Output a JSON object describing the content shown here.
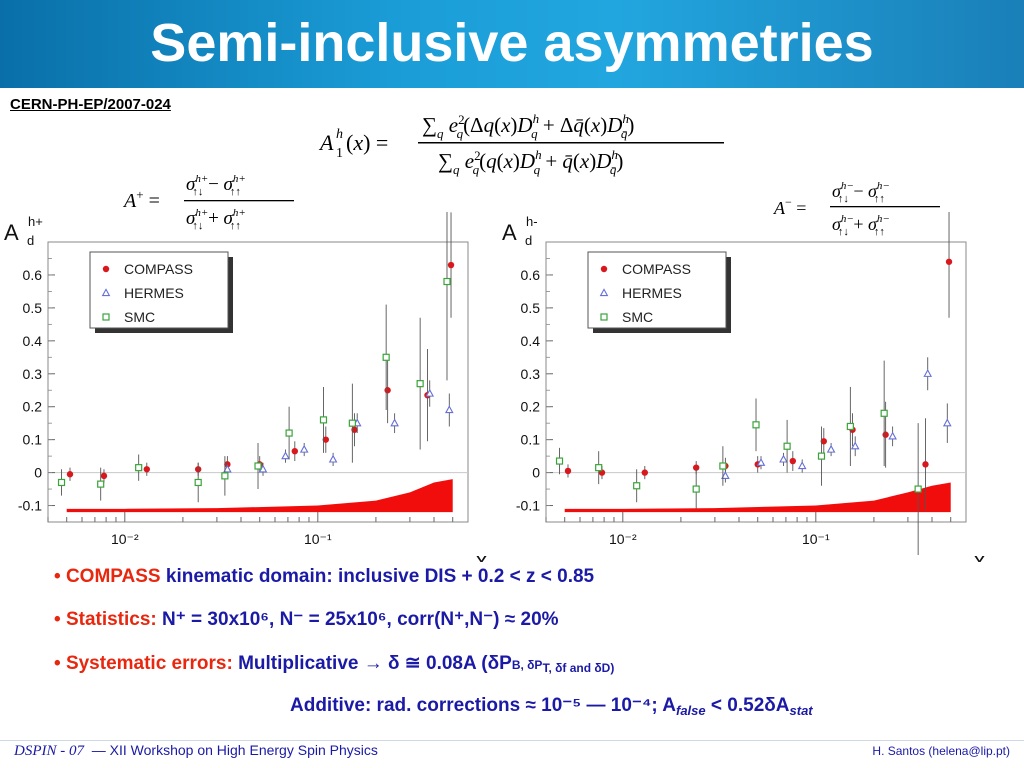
{
  "slide": {
    "title": "Semi-inclusive asymmetries",
    "reference": "CERN-PH-EP/2007-024"
  },
  "bullets": [
    {
      "parts": [
        {
          "text": "COMPASS",
          "style": "red"
        },
        {
          "text": " kinematic domain:  inclusive DIS     +     0.2 < z < 0.85",
          "style": "blue"
        }
      ]
    },
    {
      "parts": [
        {
          "text": "Statistics:",
          "style": "red"
        },
        {
          "text": "  N⁺ = 30x10⁶,      N⁻ = 25x10⁶,      corr(N⁺,N⁻) ≈ 20%",
          "style": "blue"
        }
      ]
    },
    {
      "parts": [
        {
          "text": "Systematic errors:",
          "style": "red"
        },
        {
          "text": " Multiplicative → δ ≅ 0.08A  (δP",
          "style": "blue"
        }
      ]
    },
    {
      "parts": [
        {
          "text": "Additive: rad. corrections ≈ 10⁻⁵ — 10⁻⁴;   A",
          "style": "blue"
        }
      ]
    }
  ],
  "bullet_text": {
    "b3_tail": "B, δP",
    "b3_tail2": "T, δf and δD)",
    "b4_sub1": "false",
    "b4_mid": " < 0.52δA",
    "b4_sub2": "stat"
  },
  "footer": {
    "left_italic": "DSPIN - 07",
    "left_text": "—  XII Workshop on High Energy Spin Physics",
    "right_text": "H. Santos  (helena@lip.pt)"
  },
  "colors": {
    "compass": "#d9181d",
    "hermes": "#6670d6",
    "smc": "#3aa43a",
    "band": "#f20d0d",
    "bullet_blue": "#1a1aa6",
    "bullet_red": "#e8270e"
  },
  "chart_data": [
    {
      "type": "scatter",
      "ylabel": "A",
      "ylabel_sup": "h+",
      "ylabel_sub": "d",
      "xlabel": "x",
      "xscale": "log",
      "xlim": [
        0.004,
        0.6
      ],
      "ylim": [
        -0.15,
        0.7
      ],
      "yticks": [
        -0.1,
        0,
        0.1,
        0.2,
        0.3,
        0.4,
        0.5,
        0.6
      ],
      "ytick_labels": [
        "-0.1",
        "0",
        "0.1",
        "0.2",
        "0.3",
        "0.4",
        "0.5",
        "0.6"
      ],
      "xticks": [
        0.01,
        0.1
      ],
      "xtick_labels": [
        "10⁻²",
        "10⁻¹"
      ],
      "legend": [
        "COMPASS",
        "HERMES",
        "SMC"
      ],
      "legend_position": "top-left",
      "series": [
        {
          "name": "COMPASS",
          "marker": "circle",
          "points": [
            [
              0.0052,
              -0.005,
              0.02
            ],
            [
              0.0078,
              -0.01,
              0.02
            ],
            [
              0.013,
              0.01,
              0.02
            ],
            [
              0.024,
              0.01,
              0.02
            ],
            [
              0.034,
              0.025,
              0.025
            ],
            [
              0.05,
              0.025,
              0.025
            ],
            [
              0.076,
              0.065,
              0.03
            ],
            [
              0.11,
              0.1,
              0.04
            ],
            [
              0.155,
              0.13,
              0.05
            ],
            [
              0.23,
              0.25,
              0.1
            ],
            [
              0.37,
              0.235,
              0.14
            ],
            [
              0.49,
              0.63,
              0.16
            ]
          ]
        },
        {
          "name": "HERMES",
          "marker": "triangle",
          "points": [
            [
              0.034,
              0.01,
              0.02
            ],
            [
              0.052,
              0.01,
              0.02
            ],
            [
              0.068,
              0.05,
              0.02
            ],
            [
              0.085,
              0.07,
              0.02
            ],
            [
              0.12,
              0.04,
              0.02
            ],
            [
              0.16,
              0.15,
              0.03
            ],
            [
              0.25,
              0.15,
              0.03
            ],
            [
              0.38,
              0.24,
              0.04
            ],
            [
              0.48,
              0.19,
              0.05
            ]
          ]
        },
        {
          "name": "SMC",
          "marker": "square",
          "points": [
            [
              0.0047,
              -0.03,
              0.04
            ],
            [
              0.0075,
              -0.035,
              0.05
            ],
            [
              0.0118,
              0.015,
              0.04
            ],
            [
              0.024,
              -0.03,
              0.06
            ],
            [
              0.033,
              -0.01,
              0.06
            ],
            [
              0.049,
              0.02,
              0.07
            ],
            [
              0.071,
              0.12,
              0.08
            ],
            [
              0.107,
              0.16,
              0.1
            ],
            [
              0.151,
              0.15,
              0.12
            ],
            [
              0.226,
              0.35,
              0.16
            ],
            [
              0.339,
              0.27,
              0.2
            ],
            [
              0.467,
              0.58,
              0.3
            ]
          ]
        }
      ],
      "syst_band": {
        "x": [
          0.005,
          0.01,
          0.03,
          0.1,
          0.2,
          0.3,
          0.4,
          0.5
        ],
        "top": [
          -0.11,
          -0.11,
          -0.108,
          -0.1,
          -0.085,
          -0.06,
          -0.03,
          -0.02
        ],
        "bottom": [
          -0.12,
          -0.12,
          -0.12,
          -0.12,
          -0.12,
          -0.12,
          -0.12,
          -0.12
        ]
      }
    },
    {
      "type": "scatter",
      "ylabel": "A",
      "ylabel_sup": "h-",
      "ylabel_sub": "d",
      "xlabel": "x",
      "xscale": "log",
      "xlim": [
        0.004,
        0.6
      ],
      "ylim": [
        -0.15,
        0.7
      ],
      "yticks": [
        -0.1,
        0,
        0.1,
        0.2,
        0.3,
        0.4,
        0.5,
        0.6
      ],
      "ytick_labels": [
        "-0.1",
        "0",
        "0.1",
        "0.2",
        "0.3",
        "0.4",
        "0.5",
        "0.6"
      ],
      "xticks": [
        0.01,
        0.1
      ],
      "xtick_labels": [
        "10⁻²",
        "10⁻¹"
      ],
      "legend": [
        "COMPASS",
        "HERMES",
        "SMC"
      ],
      "legend_position": "top-left",
      "series": [
        {
          "name": "COMPASS",
          "marker": "circle",
          "points": [
            [
              0.0052,
              0.005,
              0.02
            ],
            [
              0.0078,
              0.0,
              0.02
            ],
            [
              0.013,
              0.0,
              0.02
            ],
            [
              0.024,
              0.015,
              0.02
            ],
            [
              0.034,
              0.02,
              0.025
            ],
            [
              0.05,
              0.025,
              0.025
            ],
            [
              0.076,
              0.035,
              0.03
            ],
            [
              0.11,
              0.095,
              0.04
            ],
            [
              0.155,
              0.13,
              0.05
            ],
            [
              0.23,
              0.115,
              0.1
            ],
            [
              0.37,
              0.025,
              0.14
            ],
            [
              0.49,
              0.64,
              0.17
            ]
          ]
        },
        {
          "name": "HERMES",
          "marker": "triangle",
          "points": [
            [
              0.034,
              -0.01,
              0.02
            ],
            [
              0.052,
              0.03,
              0.02
            ],
            [
              0.068,
              0.04,
              0.02
            ],
            [
              0.085,
              0.02,
              0.02
            ],
            [
              0.12,
              0.07,
              0.02
            ],
            [
              0.16,
              0.08,
              0.03
            ],
            [
              0.25,
              0.11,
              0.03
            ],
            [
              0.38,
              0.3,
              0.05
            ],
            [
              0.48,
              0.15,
              0.06
            ]
          ]
        },
        {
          "name": "SMC",
          "marker": "square",
          "points": [
            [
              0.0047,
              0.035,
              0.04
            ],
            [
              0.0075,
              0.015,
              0.05
            ],
            [
              0.0118,
              -0.04,
              0.05
            ],
            [
              0.024,
              -0.05,
              0.06
            ],
            [
              0.033,
              0.02,
              0.06
            ],
            [
              0.049,
              0.145,
              0.08
            ],
            [
              0.071,
              0.08,
              0.08
            ],
            [
              0.107,
              0.05,
              0.09
            ],
            [
              0.151,
              0.14,
              0.12
            ],
            [
              0.226,
              0.18,
              0.16
            ],
            [
              0.339,
              -0.05,
              0.2
            ]
          ]
        }
      ],
      "syst_band": {
        "x": [
          0.005,
          0.01,
          0.03,
          0.1,
          0.2,
          0.3,
          0.4,
          0.5
        ],
        "top": [
          -0.11,
          -0.11,
          -0.108,
          -0.1,
          -0.085,
          -0.06,
          -0.04,
          -0.03
        ],
        "bottom": [
          -0.12,
          -0.12,
          -0.12,
          -0.12,
          -0.12,
          -0.12,
          -0.12,
          -0.12
        ]
      }
    }
  ]
}
